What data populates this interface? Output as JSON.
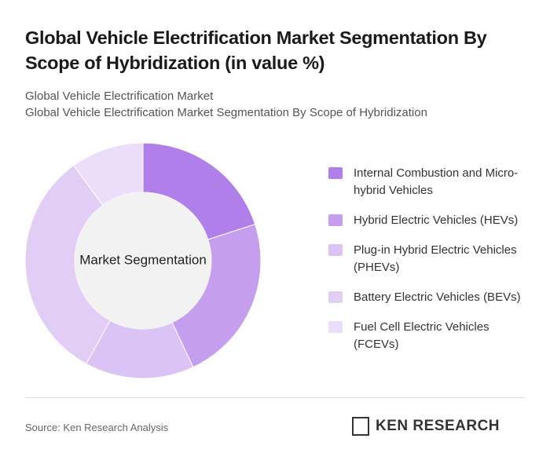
{
  "chart_data": {
    "type": "pie",
    "title": "Global Vehicle Electrification Market Segmentation By Scope of Hybridization (in value %)",
    "subtitles": [
      "Global Vehicle Electrification Market",
      "Global Vehicle Electrification Market Segmentation By Scope of Hybridization"
    ],
    "center_label": "Market Segmentation",
    "categories": [
      "Internal Combustion and Micro-hybrid Vehicles",
      "Hybrid Electric Vehicles (HEVs)",
      "Plug-in Hybrid Electric Vehicles (PHEVs)",
      "Battery Electric Vehicles (BEVs)",
      "Fuel Cell Electric Vehicles (FCEVs)"
    ],
    "values": [
      20,
      23,
      15,
      32,
      10
    ],
    "colors": [
      "#b17fe9",
      "#c59eee",
      "#dbc3f6",
      "#e2cdf7",
      "#ecdefa"
    ]
  },
  "source": "Source: Ken Research Analysis",
  "logo": "KEN RESEARCH"
}
